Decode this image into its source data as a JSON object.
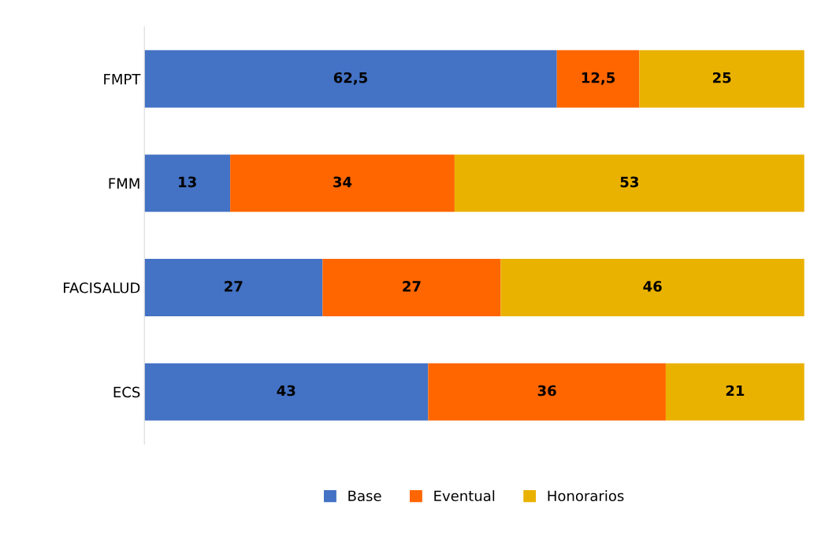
{
  "chart_data": {
    "type": "bar",
    "orientation": "horizontal",
    "stacked": true,
    "data_labels": true,
    "legend": "bottom",
    "grid": false,
    "tick_labels": "y",
    "xlim": [
      0,
      100
    ],
    "categories": [
      "FMPT",
      "FMM",
      "FACISALUD",
      "ECS"
    ],
    "series": [
      {
        "name": "Base",
        "color": "#4472c4",
        "values": [
          62.5,
          13,
          27,
          43
        ],
        "value_labels": [
          "62,5",
          "13",
          "27",
          "43"
        ]
      },
      {
        "name": "Eventual",
        "color": "#ff6600",
        "values": [
          12.5,
          34,
          27,
          36
        ],
        "value_labels": [
          "12,5",
          "34",
          "27",
          "36"
        ]
      },
      {
        "name": "Honorarios",
        "color": "#eab200",
        "values": [
          25,
          53,
          46,
          21
        ],
        "value_labels": [
          "25",
          "53",
          "46",
          "21"
        ]
      }
    ]
  }
}
